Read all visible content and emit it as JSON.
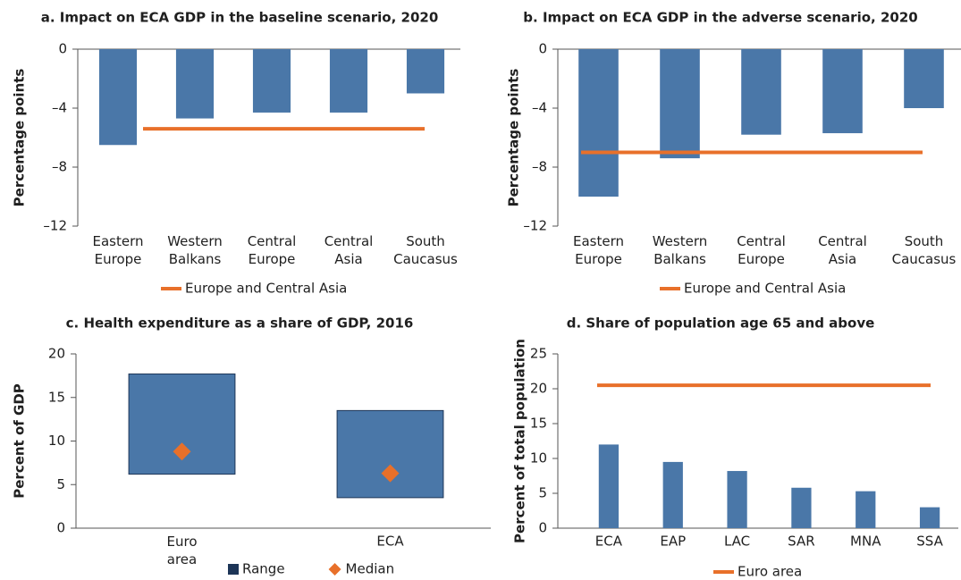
{
  "chart_data": [
    {
      "type": "bar",
      "title": "a. Impact on ECA GDP in the baseline scenario, 2020",
      "y_label": "Percentage points",
      "categories": [
        "Eastern Europe",
        "Western Balkans",
        "Central Europe",
        "Central Asia",
        "South Caucasus"
      ],
      "series": [
        {
          "name": null,
          "mark": "bar",
          "color": "#4a77a8",
          "values": [
            -6.5,
            -4.7,
            -4.3,
            -4.3,
            -3.0
          ]
        },
        {
          "name": "Europe and Central Asia",
          "mark": "hline",
          "color": "#e8702a",
          "value": -5.4
        }
      ],
      "ylim": [
        -12,
        0
      ],
      "yticks": [
        0,
        {
          "value": -4,
          "label": "–4"
        },
        {
          "value": -8,
          "label": "–8"
        },
        {
          "value": -12,
          "label": "–12"
        }
      ]
    },
    {
      "type": "bar",
      "title": "b. Impact on ECA GDP in the adverse scenario, 2020",
      "y_label": "Percentage points",
      "categories": [
        "Eastern Europe",
        "Western Balkans",
        "Central Europe",
        "Central Asia",
        "South Caucasus"
      ],
      "series": [
        {
          "name": null,
          "mark": "bar",
          "color": "#4a77a8",
          "values": [
            -10.0,
            -7.4,
            -5.8,
            -5.7,
            -4.0
          ]
        },
        {
          "name": "Europe and Central Asia",
          "mark": "hline",
          "color": "#e8702a",
          "value": -7.0
        }
      ],
      "ylim": [
        -12,
        0
      ],
      "yticks": [
        0,
        {
          "value": -4,
          "label": "–4"
        },
        {
          "value": -8,
          "label": "–8"
        },
        {
          "value": -12,
          "label": "–12"
        }
      ]
    },
    {
      "type": "range",
      "title": "c. Health expenditure as a share of GDP, 2016",
      "y_label": "Percent of GDP",
      "categories": [
        "Euro area",
        "ECA"
      ],
      "series": [
        {
          "name": "Range",
          "mark": "box",
          "color": "#4a77a8",
          "low": [
            6.2,
            3.5
          ],
          "high": [
            17.7,
            13.5
          ]
        },
        {
          "name": "Median",
          "mark": "diamond",
          "color": "#e8702a",
          "values": [
            8.8,
            6.3
          ]
        }
      ],
      "ylim": [
        0,
        20
      ],
      "yticks": [
        0,
        5,
        10,
        15,
        20
      ]
    },
    {
      "type": "bar",
      "title": "d. Share of population age 65 and above",
      "y_label": "Percent of total population",
      "categories": [
        "ECA",
        "EAP",
        "LAC",
        "SAR",
        "MNA",
        "SSA"
      ],
      "series": [
        {
          "name": null,
          "mark": "bar",
          "color": "#4a77a8",
          "values": [
            12.0,
            9.5,
            8.2,
            5.8,
            5.3,
            3.0
          ]
        },
        {
          "name": "Euro area",
          "mark": "hline",
          "color": "#e8702a",
          "value": 20.5
        }
      ],
      "ylim": [
        0,
        25
      ],
      "yticks": [
        0,
        5,
        10,
        15,
        20,
        25
      ]
    }
  ]
}
